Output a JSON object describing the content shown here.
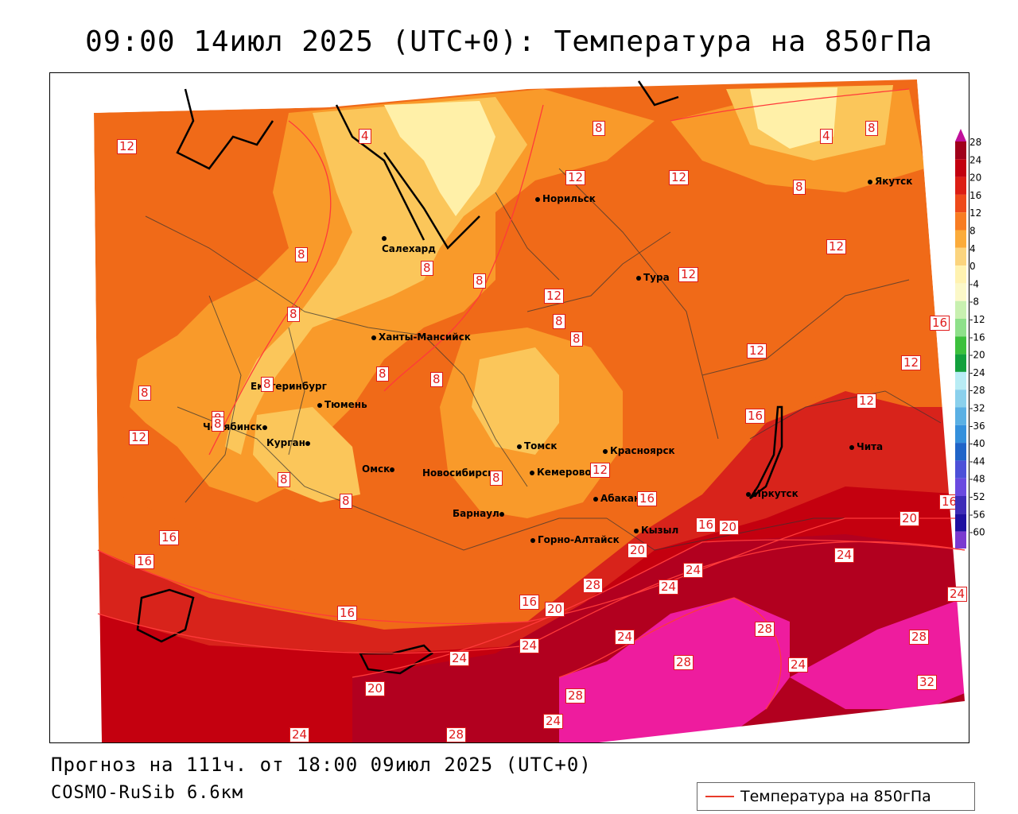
{
  "title": "09:00 14июл 2025 (UTC+0): Температура на 850гПа",
  "forecast_line": "Прогноз на 111ч. от 18:00 09июл 2025 (UTC+0)",
  "model_line": "COSMO-RuSib 6.6км",
  "legend": {
    "line_label": "Температура на 850гПа",
    "line_color": "#e83a2a"
  },
  "colors": {
    "c32": "#ee1c9e",
    "c28": "#b2001f",
    "c24": "#c4000f",
    "c20": "#d8231b",
    "c16": "#e8481e",
    "c12": "#f06a18",
    "c8": "#f99a2a",
    "c4": "#fbc65a",
    "c0": "#fff0a8",
    "isoline": "#ff3a3a"
  },
  "scale": {
    "labels": [
      "28",
      "24",
      "20",
      "16",
      "12",
      "8",
      "4",
      "0",
      "-4",
      "-8",
      "-12",
      "-16",
      "-20",
      "-24",
      "-28",
      "-32",
      "-36",
      "-40",
      "-44",
      "-48",
      "-52",
      "-56",
      "-60"
    ],
    "colors": [
      "#a0001a",
      "#c2000f",
      "#dc1e14",
      "#ee4a1a",
      "#f87c22",
      "#fbab3a",
      "#fbd47e",
      "#fff2b0",
      "#fbf8c8",
      "#c8f0b0",
      "#8ee08a",
      "#3cc03c",
      "#12a03c",
      "#b8ecf4",
      "#8ad0ec",
      "#5ab0e4",
      "#3490dc",
      "#2064c8",
      "#4c50d8",
      "#6a4ae0",
      "#3e2cb8",
      "#1e10a0",
      "#7a3ad0"
    ]
  },
  "cities": [
    {
      "name": "Норильск"
    },
    {
      "name": "Якутск"
    },
    {
      "name": "Салехард"
    },
    {
      "name": "Тура"
    },
    {
      "name": "Ханты-Мансийск"
    },
    {
      "name": "Екатеринбург"
    },
    {
      "name": "Тюмень"
    },
    {
      "name": "Челябинск"
    },
    {
      "name": "Курган"
    },
    {
      "name": "Омск"
    },
    {
      "name": "Новосибирск"
    },
    {
      "name": "Томск"
    },
    {
      "name": "Красноярск"
    },
    {
      "name": "Кемерово"
    },
    {
      "name": "Абакан"
    },
    {
      "name": "Иркутск"
    },
    {
      "name": "Чита"
    },
    {
      "name": "Барнаул"
    },
    {
      "name": "Горно-Алтайск"
    },
    {
      "name": "Кызыл"
    }
  ],
  "isolines": [
    "12",
    "4",
    "8",
    "8",
    "12",
    "12",
    "4",
    "8",
    "8",
    "12",
    "8",
    "8",
    "8",
    "12",
    "12",
    "8",
    "8",
    "8",
    "8",
    "8",
    "12",
    "16",
    "8",
    "8",
    "8",
    "16",
    "12",
    "12",
    "12",
    "16",
    "8",
    "8",
    "8",
    "12",
    "16",
    "16",
    "16",
    "20",
    "16",
    "16",
    "20",
    "16",
    "24",
    "28",
    "20",
    "24",
    "24",
    "28",
    "24",
    "28",
    "24",
    "20",
    "24",
    "24",
    "28",
    "32",
    "20",
    "28",
    "24",
    "24",
    "24",
    "28"
  ]
}
